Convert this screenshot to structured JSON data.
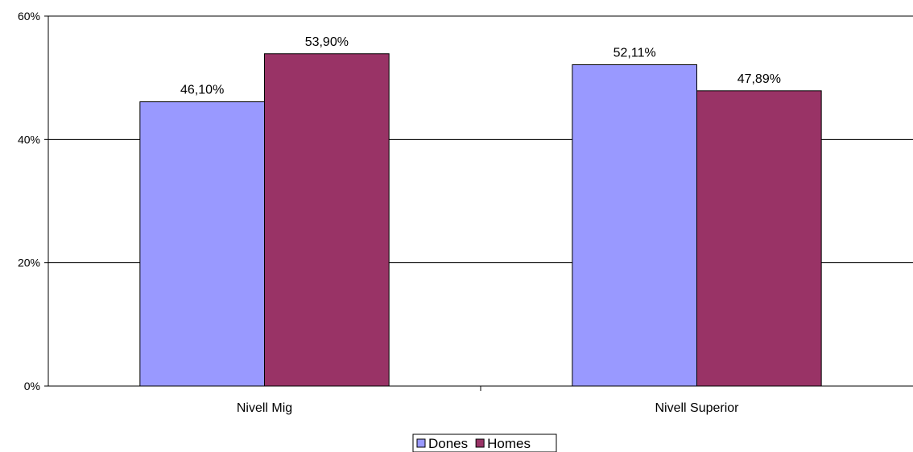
{
  "chart_data": {
    "type": "bar",
    "categories": [
      "Nivell Mig",
      "Nivell Superior"
    ],
    "series": [
      {
        "name": "Dones",
        "values": [
          46.1,
          52.11
        ],
        "labels": [
          "46,10%",
          "52,11%"
        ],
        "color": "#9999FF"
      },
      {
        "name": "Homes",
        "values": [
          53.9,
          47.89
        ],
        "labels": [
          "53,90%",
          "47,89%"
        ],
        "color": "#993366"
      }
    ],
    "ylim": [
      0,
      60
    ],
    "yticks": [
      0,
      20,
      40,
      60
    ],
    "ytick_labels": [
      "0%",
      "20%",
      "40%",
      "60%"
    ],
    "grid": true,
    "legend": "bottom"
  }
}
